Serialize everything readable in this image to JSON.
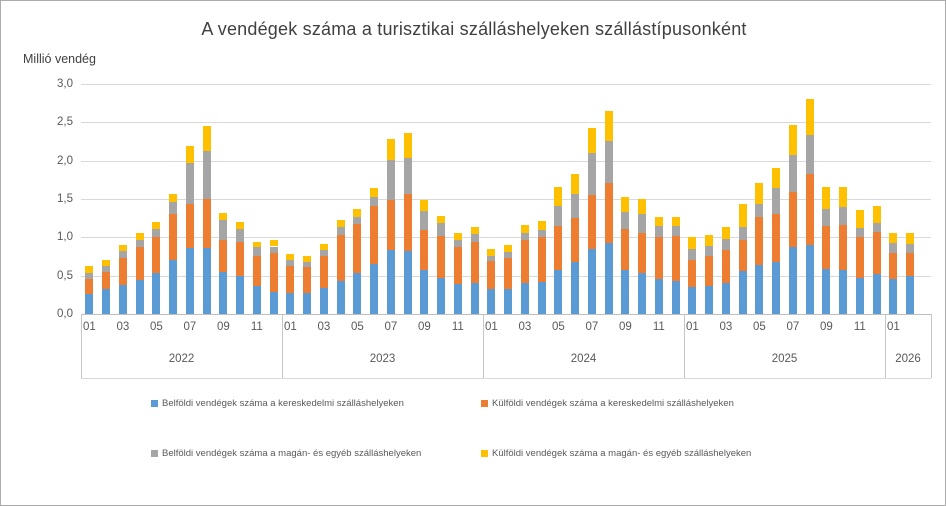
{
  "title": "A vendégek száma a turisztikai szálláshelyeken szállástípusonként",
  "y_axis": {
    "unit_label": "Millió vendég",
    "ticks": [
      "3,0",
      "2,5",
      "2,0",
      "1,5",
      "1,0",
      "0,5",
      "0,0"
    ]
  },
  "x_axis": {
    "month_labels": [
      "01",
      "03",
      "05",
      "07",
      "09",
      "11"
    ],
    "years": [
      {
        "label": "2022",
        "months": 12
      },
      {
        "label": "2023",
        "months": 12
      },
      {
        "label": "2024",
        "months": 12
      },
      {
        "label": "2025",
        "months": 12
      },
      {
        "label": "2026",
        "months": 2
      }
    ]
  },
  "legend": {
    "items": [
      {
        "label": "Belföldi vendégek száma a kereskedelmi szálláshelyeken",
        "color": "#5B9BD5"
      },
      {
        "label": "Külföldi vendégek száma a kereskedelmi szálláshelyeken",
        "color": "#ED7D31"
      },
      {
        "label": "Belföldi vendégek száma a magán- és egyéb szálláshelyeken",
        "color": "#A5A5A5"
      },
      {
        "label": "Külföldi vendégek száma a magán- és egyéb szálláshelyeken",
        "color": "#FFC000"
      }
    ]
  },
  "colors": {
    "blue": "#5B9BD5",
    "orange": "#ED7D31",
    "gray": "#A5A5A5",
    "yellow": "#FFC000",
    "gridline": "#D9D9D9",
    "axis_text": "#595959",
    "title_text": "#404040"
  },
  "chart_data": {
    "type": "bar",
    "stacked": true,
    "title": "A vendégek száma a turisztikai szálláshelyeken szállástípusonként",
    "xlabel": "",
    "ylabel": "Millió vendég",
    "ylim": [
      0,
      3.0
    ],
    "ytick_step": 0.5,
    "grid": true,
    "legend_position": "bottom",
    "categories": [
      "2022-01",
      "2022-02",
      "2022-03",
      "2022-04",
      "2022-05",
      "2022-06",
      "2022-07",
      "2022-08",
      "2022-09",
      "2022-10",
      "2022-11",
      "2022-12",
      "2023-01",
      "2023-02",
      "2023-03",
      "2023-04",
      "2023-05",
      "2023-06",
      "2023-07",
      "2023-08",
      "2023-09",
      "2023-10",
      "2023-11",
      "2023-12",
      "2024-01",
      "2024-02",
      "2024-03",
      "2024-04",
      "2024-05",
      "2024-06",
      "2024-07",
      "2024-08",
      "2024-09",
      "2024-10",
      "2024-11",
      "2024-12",
      "2025-01",
      "2025-02",
      "2025-03",
      "2025-04",
      "2025-05",
      "2025-06",
      "2025-07",
      "2025-08",
      "2025-09",
      "2025-10",
      "2025-11",
      "2025-12",
      "2026-01",
      "2026-02"
    ],
    "series": [
      {
        "name": "Belföldi vendégek száma a kereskedelmi szálláshelyeken",
        "color": "#5B9BD5",
        "values": [
          0.26,
          0.32,
          0.38,
          0.44,
          0.53,
          0.7,
          0.86,
          0.86,
          0.55,
          0.49,
          0.37,
          0.29,
          0.28,
          0.28,
          0.34,
          0.43,
          0.54,
          0.65,
          0.83,
          0.82,
          0.57,
          0.47,
          0.39,
          0.4,
          0.33,
          0.33,
          0.41,
          0.42,
          0.58,
          0.68,
          0.85,
          0.92,
          0.57,
          0.53,
          0.45,
          0.43,
          0.35,
          0.36,
          0.4,
          0.56,
          0.64,
          0.68,
          0.87,
          0.9,
          0.59,
          0.58,
          0.47,
          0.52,
          0.45,
          0.5
        ]
      },
      {
        "name": "Külföldi vendégek száma a kereskedelmi szálláshelyeken",
        "color": "#ED7D31",
        "values": [
          0.2,
          0.23,
          0.35,
          0.43,
          0.48,
          0.6,
          0.57,
          0.64,
          0.41,
          0.45,
          0.39,
          0.5,
          0.34,
          0.33,
          0.41,
          0.6,
          0.63,
          0.76,
          0.65,
          0.75,
          0.53,
          0.55,
          0.48,
          0.54,
          0.36,
          0.4,
          0.55,
          0.58,
          0.57,
          0.57,
          0.7,
          0.79,
          0.54,
          0.53,
          0.55,
          0.59,
          0.36,
          0.4,
          0.44,
          0.41,
          0.63,
          0.63,
          0.72,
          0.92,
          0.56,
          0.58,
          0.53,
          0.55,
          0.35,
          0.3
        ]
      },
      {
        "name": "Belföldi vendégek száma a magán- és egyéb szálláshelyeken",
        "color": "#A5A5A5",
        "values": [
          0.08,
          0.08,
          0.09,
          0.1,
          0.1,
          0.16,
          0.54,
          0.63,
          0.26,
          0.17,
          0.11,
          0.09,
          0.08,
          0.07,
          0.08,
          0.1,
          0.1,
          0.12,
          0.53,
          0.47,
          0.24,
          0.16,
          0.1,
          0.1,
          0.07,
          0.08,
          0.1,
          0.1,
          0.26,
          0.32,
          0.55,
          0.55,
          0.22,
          0.25,
          0.15,
          0.13,
          0.14,
          0.13,
          0.14,
          0.17,
          0.16,
          0.33,
          0.48,
          0.52,
          0.22,
          0.23,
          0.12,
          0.12,
          0.12,
          0.11
        ]
      },
      {
        "name": "Külföldi vendégek száma a magán- és egyéb szálláshelyeken",
        "color": "#FFC000",
        "values": [
          0.08,
          0.07,
          0.08,
          0.09,
          0.09,
          0.1,
          0.22,
          0.32,
          0.1,
          0.09,
          0.07,
          0.08,
          0.08,
          0.07,
          0.08,
          0.1,
          0.1,
          0.11,
          0.27,
          0.32,
          0.14,
          0.1,
          0.09,
          0.1,
          0.09,
          0.09,
          0.1,
          0.11,
          0.24,
          0.25,
          0.33,
          0.39,
          0.2,
          0.19,
          0.11,
          0.11,
          0.16,
          0.14,
          0.16,
          0.3,
          0.28,
          0.27,
          0.4,
          0.46,
          0.29,
          0.27,
          0.23,
          0.22,
          0.13,
          0.14
        ]
      }
    ]
  }
}
